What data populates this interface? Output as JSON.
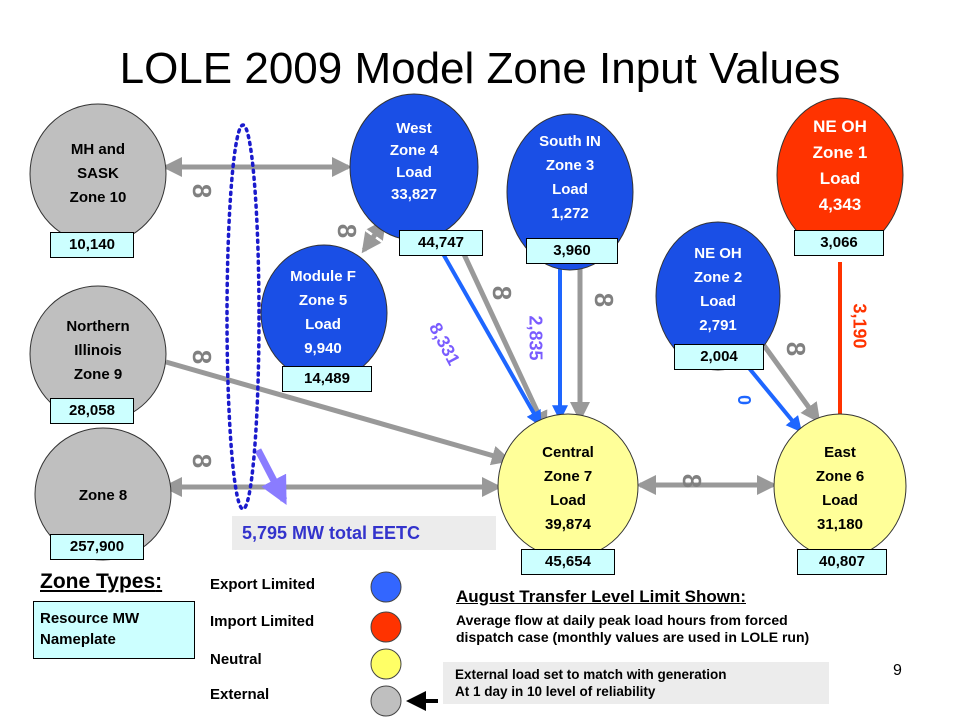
{
  "title": "LOLE 2009 Model Zone Input Values",
  "zones": {
    "z10": {
      "lines": [
        "MH and",
        "SASK",
        "Zone 10"
      ],
      "value": "10,140",
      "type": "External"
    },
    "z9": {
      "lines": [
        "Northern",
        "Illinois",
        "Zone 9"
      ],
      "value": "28,058",
      "type": "External"
    },
    "z8": {
      "lines": [
        "Zone 8"
      ],
      "value": "257,900",
      "type": "External"
    },
    "z4": {
      "lines": [
        "West",
        "Zone 4",
        "Load",
        "33,827"
      ],
      "value": "44,747",
      "type": "Export Limited"
    },
    "z5": {
      "lines": [
        "Module F",
        "Zone 5",
        "Load",
        "9,940"
      ],
      "value": "14,489",
      "type": "Export Limited"
    },
    "z3": {
      "lines": [
        "South IN",
        "Zone 3",
        "Load",
        "1,272"
      ],
      "value": "3,960",
      "type": "Export Limited"
    },
    "z2": {
      "lines": [
        "NE OH",
        "Zone 2",
        "Load",
        "2,791"
      ],
      "value": "2,004",
      "type": "Export Limited"
    },
    "z1": {
      "lines": [
        "NE OH",
        "Zone 1",
        "Load",
        "4,343"
      ],
      "value": "3,066",
      "type": "Import Limited"
    },
    "z7": {
      "lines": [
        "Central",
        "Zone 7",
        "Load",
        "39,874"
      ],
      "value": "45,654",
      "type": "Neutral"
    },
    "z6": {
      "lines": [
        "East",
        "Zone 6",
        "Load",
        "31,180"
      ],
      "value": "40,807",
      "type": "Neutral"
    }
  },
  "flows": {
    "west_to_central": "8,331",
    "south_to_central": "2,835",
    "ne2_to_east": "0",
    "ne1_to_east": "3,190"
  },
  "infinity_symbol": "8",
  "eetc_label": "5,795 MW total EETC",
  "legend": {
    "title": "Zone Types",
    "colon": ":",
    "box_text": [
      "Resource MW",
      "Nameplate"
    ],
    "types": [
      {
        "label": "Export Limited",
        "color": "#3366ff"
      },
      {
        "label": "Import Limited",
        "color": "#ff3300"
      },
      {
        "label": "Neutral",
        "color": "#ffff66"
      },
      {
        "label": "External",
        "color": "#bfbfbf"
      }
    ]
  },
  "august": {
    "title": "August Transfer Level Limit Shown",
    "colon": ":",
    "lines": [
      "Average flow at daily peak load hours from forced",
      "dispatch case (monthly values are used in LOLE run)"
    ]
  },
  "external_note": [
    "External load set to match with generation",
    "At 1 day in 10 level of reliability"
  ],
  "page_number": "9",
  "colors": {
    "export": "#1a4fe6",
    "import": "#ff3300",
    "neutral": "#ffff99",
    "external": "#bfbfbf",
    "value_box": "#ccffff",
    "arrow_gray": "#999999",
    "arrow_blue": "#1e66ff",
    "arrow_red": "#ff3300",
    "flow_purple": "#7a5cff",
    "dotted": "#1a1acc"
  }
}
